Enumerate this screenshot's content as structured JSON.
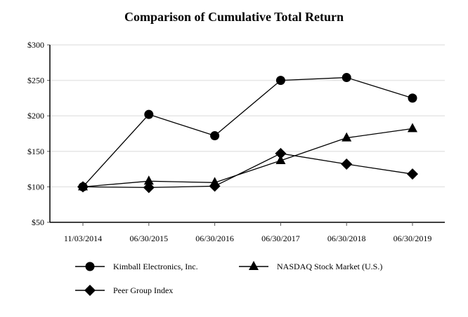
{
  "chart_data": {
    "type": "line",
    "title": "Comparison of Cumulative Total Return",
    "xlabel": "",
    "ylabel": "",
    "categories": [
      "11/03/2014",
      "06/30/2015",
      "06/30/2016",
      "06/30/2017",
      "06/30/2018",
      "06/30/2019"
    ],
    "yticks": [
      "$50",
      "$100",
      "$150",
      "$200",
      "$250",
      "$300"
    ],
    "ylim": [
      50,
      300
    ],
    "grid": true,
    "legend_position": "bottom",
    "series": [
      {
        "name": "Kimball Electronics, Inc.",
        "marker": "circle",
        "values": [
          100,
          202,
          172,
          250,
          254,
          225
        ]
      },
      {
        "name": "NASDAQ Stock Market (U.S.)",
        "marker": "triangle",
        "values": [
          100,
          108,
          106,
          137,
          169,
          182
        ]
      },
      {
        "name": "Peer Group Index",
        "marker": "diamond",
        "values": [
          100,
          99,
          101,
          147,
          132,
          118
        ]
      }
    ]
  },
  "colors": {
    "line": "#000000",
    "grid": "#e6e6e6",
    "axis": "#000000"
  }
}
